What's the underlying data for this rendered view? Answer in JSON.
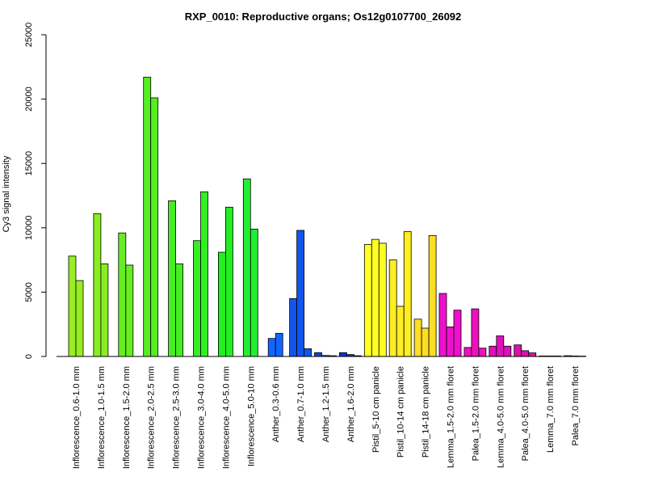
{
  "chart_data": {
    "type": "bar",
    "title": "RXP_0010: Reproductive organs; Os12g0107700_26092",
    "ylabel": "Cy3 signal intensity",
    "xlabel": "",
    "ylim": [
      0,
      25000
    ],
    "yticks": [
      0,
      5000,
      10000,
      15000,
      20000,
      25000
    ],
    "grid": false,
    "groups": [
      {
        "label": "Inflorescence_0.6-1.0 mm",
        "color": "#99ee22",
        "values": [
          7800,
          5900
        ]
      },
      {
        "label": "Inflorescence_1.0-1.5 mm",
        "color": "#88ee22",
        "values": [
          11100,
          7200
        ]
      },
      {
        "label": "Inflorescence_1.5-2.0 mm",
        "color": "#66ee22",
        "values": [
          9600,
          7100
        ]
      },
      {
        "label": "Inflorescence_2.0-2.5 mm",
        "color": "#55ee22",
        "values": [
          21700,
          20100
        ]
      },
      {
        "label": "Inflorescence_2.5-3.0 mm",
        "color": "#44ee22",
        "values": [
          12100,
          7200
        ]
      },
      {
        "label": "Inflorescence_3.0-4.0 mm",
        "color": "#33ee22",
        "values": [
          9000,
          12800
        ]
      },
      {
        "label": "Inflorescence_4.0-5.0 mm",
        "color": "#22ee22",
        "values": [
          8100,
          11600
        ]
      },
      {
        "label": "Inflorescence_5.0-10 mm",
        "color": "#22ee33",
        "values": [
          13800,
          9900
        ]
      },
      {
        "label": "Anther_0.3-0.6 mm",
        "color": "#1166ff",
        "values": [
          1400,
          1800
        ]
      },
      {
        "label": "Anther_0.7-1.0 mm",
        "color": "#1155ee",
        "values": [
          4500,
          9800,
          600
        ]
      },
      {
        "label": "Anther_1.2-1.5 mm",
        "color": "#1144dd",
        "values": [
          300,
          80,
          60
        ]
      },
      {
        "label": "Anther_1.6-2.0 mm",
        "color": "#1133cc",
        "values": [
          300,
          150,
          60
        ]
      },
      {
        "label": "Pistil_5-10 cm panicle",
        "color": "#ffff22",
        "values": [
          8700,
          9100,
          8800
        ]
      },
      {
        "label": "Pistil_10-14 cm panicle",
        "color": "#ffee22",
        "values": [
          7500,
          3900,
          9700
        ]
      },
      {
        "label": "Pistil_14-18 cm panicle",
        "color": "#ffdd22",
        "values": [
          2900,
          2200,
          9400
        ]
      },
      {
        "label": "Lemma_1.5-2.0 mm floret",
        "color": "#ee11cc",
        "values": [
          4900,
          2300,
          3600
        ]
      },
      {
        "label": "Palea_1.5-2.0 mm floret",
        "color": "#ee11bb",
        "values": [
          700,
          3700,
          650
        ]
      },
      {
        "label": "Lemma_4.0-5.0 mm floret",
        "color": "#dd11bb",
        "values": [
          800,
          1600,
          800
        ]
      },
      {
        "label": "Palea_4.0-5.0 mm floret",
        "color": "#dd11aa",
        "values": [
          900,
          450,
          280
        ]
      },
      {
        "label": "Lemma_7.0 mm floret",
        "color": "#cc11aa",
        "values": [
          40,
          40,
          40
        ]
      },
      {
        "label": "Palea_7.0 mm floret",
        "color": "#bb1199",
        "values": [
          60,
          40,
          30
        ]
      }
    ]
  }
}
